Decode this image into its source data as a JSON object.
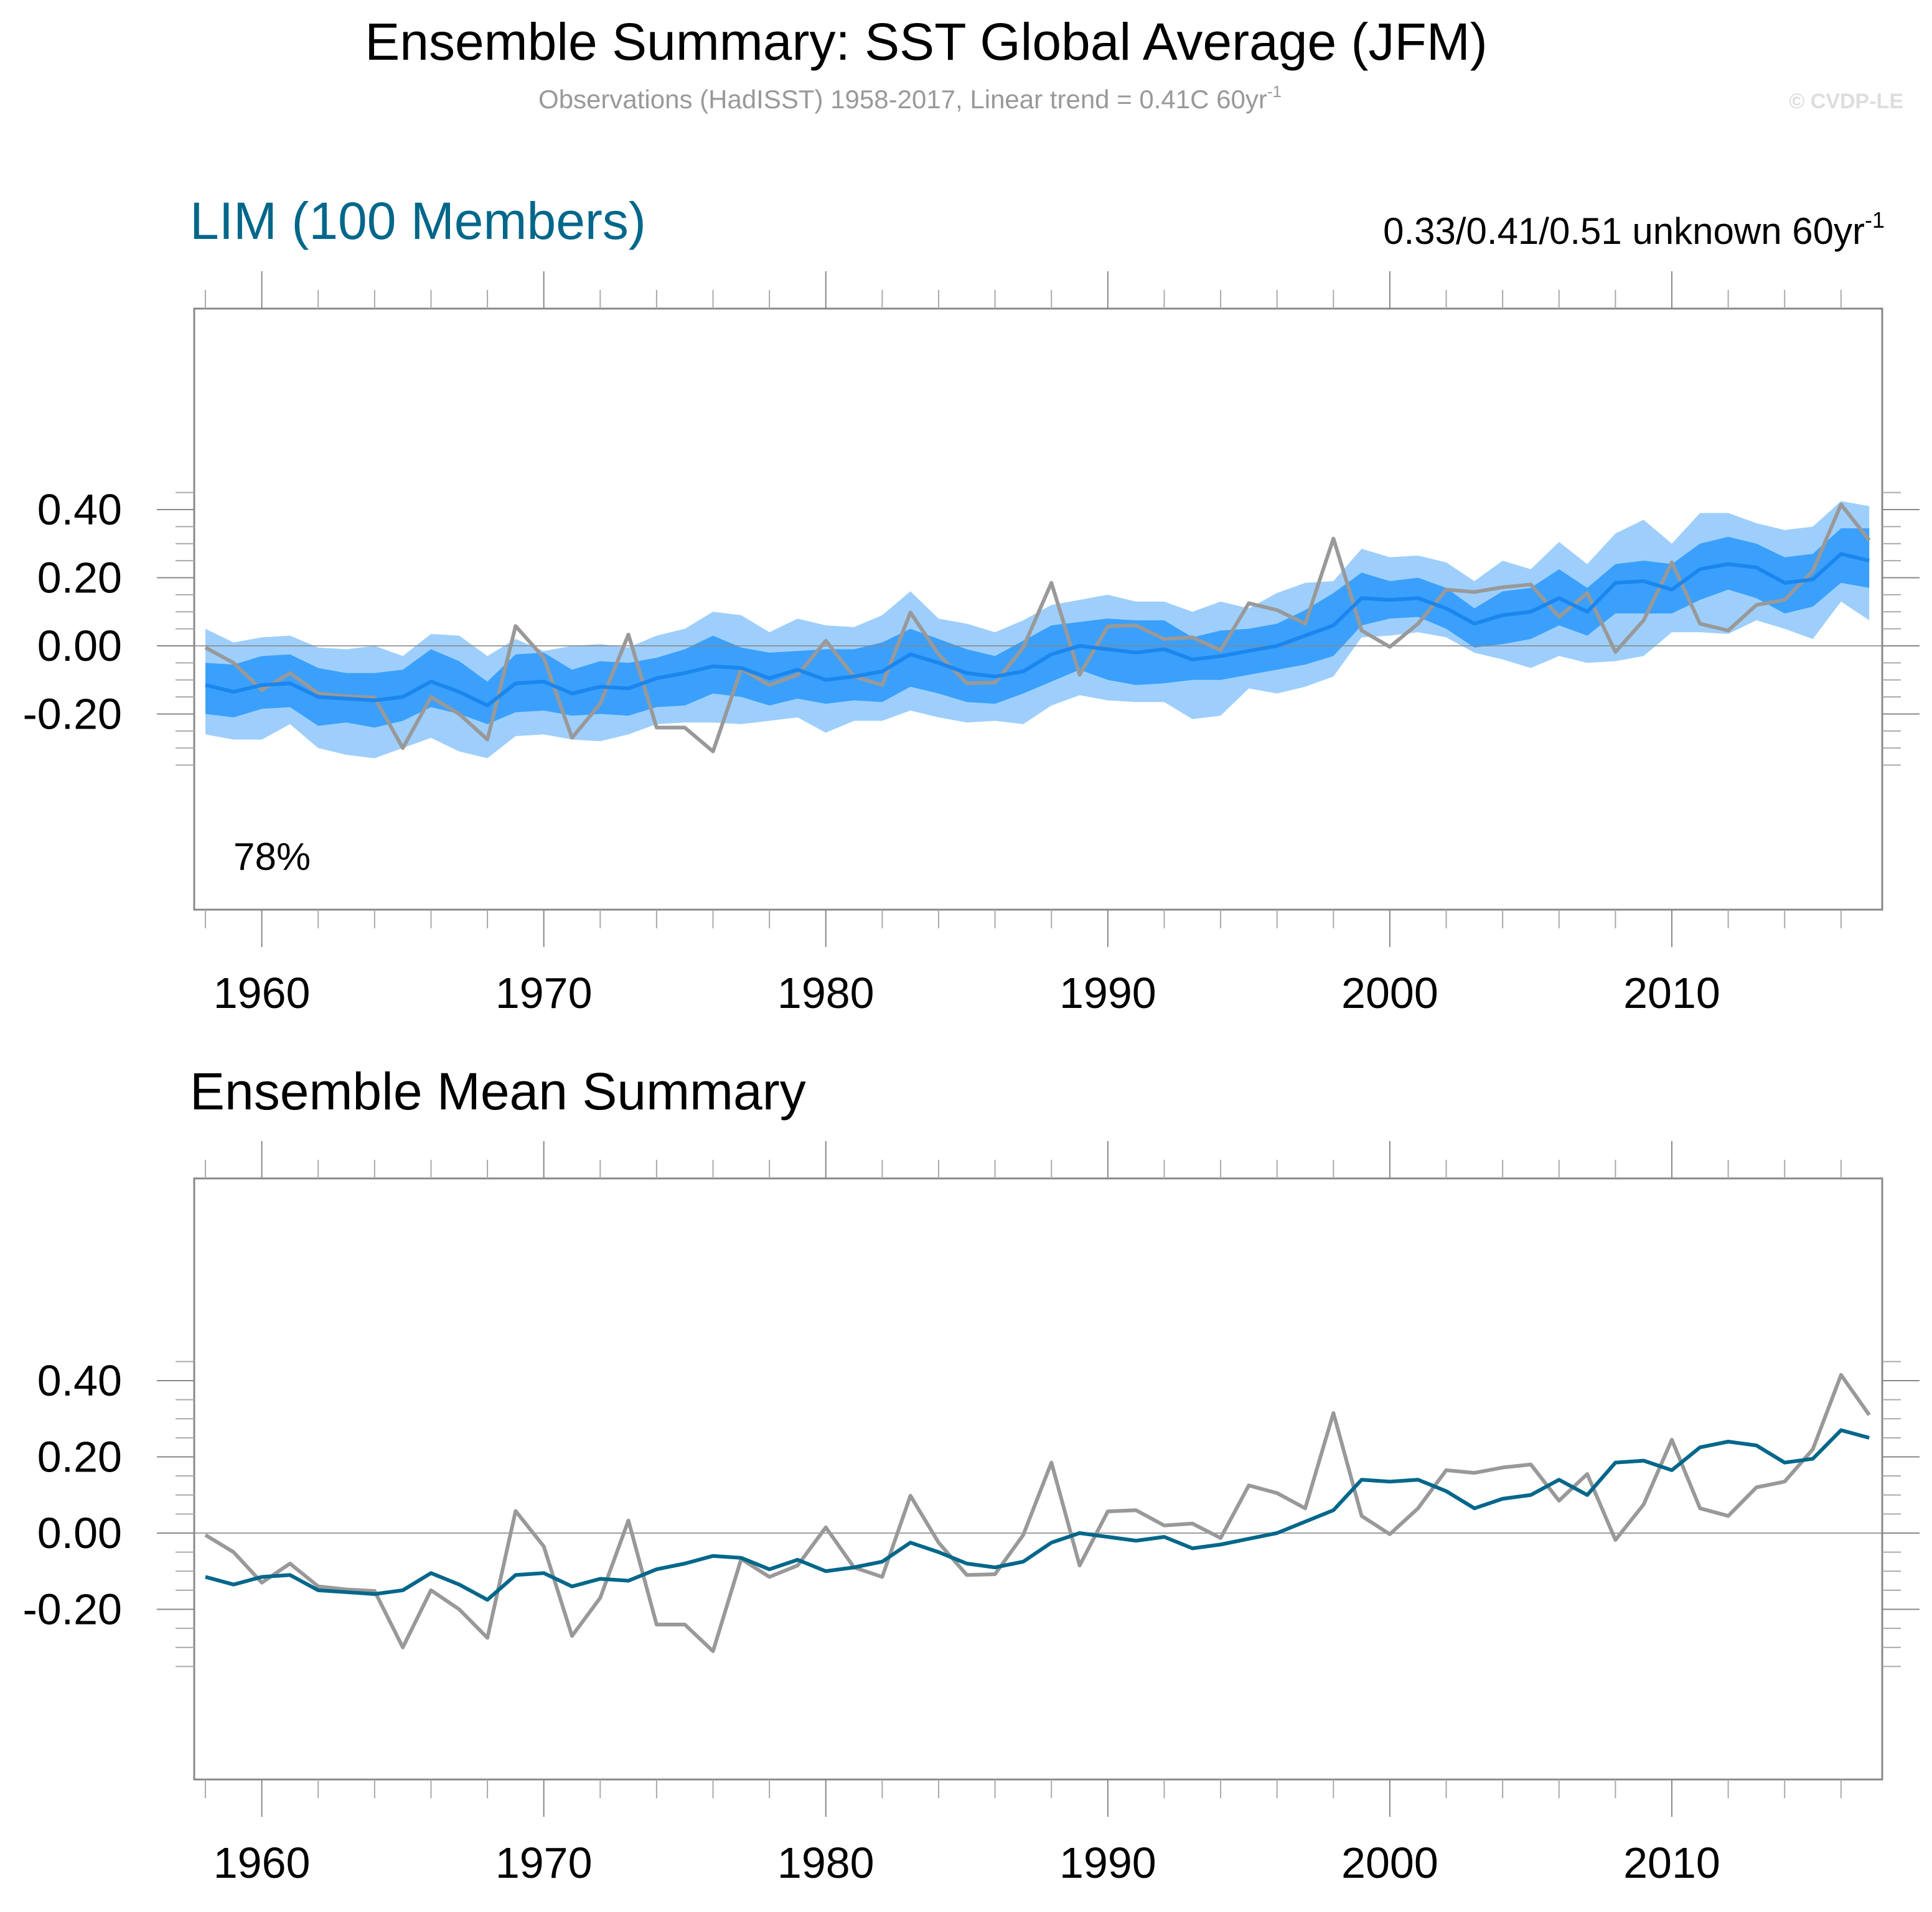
{
  "figure": {
    "title": "Ensemble Summary: SST Global Average (JFM)",
    "subtitle": "Observations (HadISST) 1958-2017, Linear trend = 0.41C 60yr",
    "subtitle_sup": "-1",
    "copyright": "© CVDP-LE"
  },
  "colors": {
    "outer_band": "#9ECFFC",
    "inner_band": "#3AA0FC",
    "ensemble_mean_top": "#1A86EE",
    "ensemble_mean_bottom": "#00678A",
    "observations": "#999999",
    "panel_label": "#00678A"
  },
  "chart_data": [
    {
      "type": "area",
      "panel_title": "LIM (100 Members)",
      "trend_label": "0.33/0.41/0.51 unknown 60yr",
      "trend_label_sup": "-1",
      "annotation": "78%",
      "xlim": [
        1958,
        2017
      ],
      "ylim": [
        -0.4,
        0.42
      ],
      "x_major_ticks": [
        1960,
        1970,
        1980,
        1990,
        2000,
        2010
      ],
      "x_tick_labels": [
        "1960",
        "1970",
        "1980",
        "1990",
        "2000",
        "2010"
      ],
      "y_major_ticks": [
        -0.2,
        0.0,
        0.2,
        0.4
      ],
      "y_tick_labels": [
        "-0.20",
        "0.00",
        "0.20",
        "0.40"
      ],
      "zero_line": true,
      "x": [
        1958,
        1959,
        1960,
        1961,
        1962,
        1963,
        1964,
        1965,
        1966,
        1967,
        1968,
        1969,
        1970,
        1971,
        1972,
        1973,
        1974,
        1975,
        1976,
        1977,
        1978,
        1979,
        1980,
        1981,
        1982,
        1983,
        1984,
        1985,
        1986,
        1987,
        1988,
        1989,
        1990,
        1991,
        1992,
        1993,
        1994,
        1995,
        1996,
        1997,
        1998,
        1999,
        2000,
        2001,
        2002,
        2003,
        2004,
        2005,
        2006,
        2007,
        2008,
        2009,
        2010,
        2011,
        2012,
        2013,
        2014,
        2015,
        2016,
        2017
      ],
      "series": [
        {
          "name": "Ensemble range upper (outer)",
          "role": "outer_upper",
          "values": [
            0.05,
            0.01,
            0.025,
            0.03,
            -0.005,
            -0.01,
            0.0,
            -0.03,
            0.035,
            0.03,
            -0.03,
            0.02,
            -0.015,
            0.0,
            0.005,
            -0.005,
            0.03,
            0.05,
            0.1,
            0.09,
            0.04,
            0.08,
            0.06,
            0.055,
            0.09,
            0.16,
            0.08,
            0.065,
            0.04,
            0.075,
            0.12,
            0.135,
            0.15,
            0.13,
            0.13,
            0.1,
            0.13,
            0.11,
            0.155,
            0.185,
            0.19,
            0.285,
            0.26,
            0.265,
            0.245,
            0.19,
            0.25,
            0.225,
            0.305,
            0.24,
            0.33,
            0.37,
            0.3,
            0.39,
            0.39,
            0.36,
            0.34,
            0.35,
            0.425,
            0.41
          ]
        },
        {
          "name": "Ensemble range lower (outer)",
          "role": "outer_lower",
          "values": [
            -0.26,
            -0.275,
            -0.275,
            -0.23,
            -0.3,
            -0.32,
            -0.33,
            -0.3,
            -0.27,
            -0.31,
            -0.33,
            -0.265,
            -0.26,
            -0.275,
            -0.28,
            -0.26,
            -0.23,
            -0.225,
            -0.225,
            -0.23,
            -0.22,
            -0.21,
            -0.255,
            -0.22,
            -0.22,
            -0.19,
            -0.21,
            -0.225,
            -0.22,
            -0.23,
            -0.175,
            -0.145,
            -0.16,
            -0.165,
            -0.165,
            -0.215,
            -0.205,
            -0.125,
            -0.14,
            -0.12,
            -0.09,
            0.025,
            0.03,
            0.04,
            0.025,
            -0.02,
            -0.04,
            -0.065,
            -0.03,
            -0.05,
            -0.045,
            -0.03,
            0.04,
            0.04,
            0.035,
            0.075,
            0.05,
            0.02,
            0.13,
            0.075
          ]
        },
        {
          "name": "Ensemble range upper (inner)",
          "role": "inner_upper",
          "values": [
            -0.05,
            -0.055,
            -0.03,
            -0.025,
            -0.065,
            -0.08,
            -0.08,
            -0.07,
            -0.01,
            -0.045,
            -0.105,
            -0.025,
            -0.02,
            -0.07,
            -0.045,
            -0.05,
            -0.035,
            -0.01,
            0.03,
            -0.005,
            -0.02,
            -0.015,
            -0.01,
            -0.01,
            0.01,
            0.05,
            0.02,
            -0.01,
            -0.03,
            0.015,
            0.06,
            0.07,
            0.08,
            0.075,
            0.075,
            0.025,
            0.045,
            0.05,
            0.065,
            0.105,
            0.155,
            0.215,
            0.19,
            0.2,
            0.17,
            0.11,
            0.16,
            0.17,
            0.225,
            0.17,
            0.24,
            0.25,
            0.24,
            0.3,
            0.32,
            0.3,
            0.26,
            0.27,
            0.345,
            0.345
          ]
        },
        {
          "name": "Ensemble range lower (inner)",
          "role": "inner_lower",
          "values": [
            -0.2,
            -0.21,
            -0.185,
            -0.18,
            -0.235,
            -0.225,
            -0.24,
            -0.22,
            -0.18,
            -0.2,
            -0.23,
            -0.195,
            -0.19,
            -0.205,
            -0.2,
            -0.205,
            -0.18,
            -0.175,
            -0.14,
            -0.15,
            -0.175,
            -0.155,
            -0.17,
            -0.16,
            -0.165,
            -0.12,
            -0.14,
            -0.165,
            -0.17,
            -0.14,
            -0.105,
            -0.07,
            -0.1,
            -0.115,
            -0.11,
            -0.1,
            -0.1,
            -0.085,
            -0.07,
            -0.055,
            -0.03,
            0.06,
            0.08,
            0.085,
            0.05,
            -0.005,
            0.005,
            0.02,
            0.06,
            0.03,
            0.095,
            0.095,
            0.095,
            0.135,
            0.165,
            0.14,
            0.095,
            0.115,
            0.185,
            0.17
          ]
        },
        {
          "name": "Ensemble mean",
          "role": "mean",
          "values": [
            -0.115,
            -0.135,
            -0.115,
            -0.11,
            -0.15,
            -0.155,
            -0.16,
            -0.15,
            -0.105,
            -0.135,
            -0.175,
            -0.11,
            -0.105,
            -0.14,
            -0.12,
            -0.125,
            -0.095,
            -0.08,
            -0.06,
            -0.065,
            -0.095,
            -0.07,
            -0.1,
            -0.09,
            -0.075,
            -0.025,
            -0.05,
            -0.08,
            -0.09,
            -0.075,
            -0.025,
            0.0,
            -0.01,
            -0.02,
            -0.01,
            -0.04,
            -0.03,
            -0.015,
            0.0,
            0.03,
            0.06,
            0.14,
            0.135,
            0.14,
            0.11,
            0.065,
            0.09,
            0.1,
            0.14,
            0.1,
            0.185,
            0.19,
            0.165,
            0.225,
            0.24,
            0.23,
            0.185,
            0.195,
            0.27,
            0.25
          ]
        },
        {
          "name": "Observations (HadISST)",
          "role": "obs",
          "values": [
            -0.005,
            -0.05,
            -0.13,
            -0.08,
            -0.14,
            -0.148,
            -0.152,
            -0.3,
            -0.15,
            -0.2,
            -0.275,
            0.058,
            -0.035,
            -0.27,
            -0.17,
            0.033,
            -0.24,
            -0.24,
            -0.31,
            -0.068,
            -0.115,
            -0.085,
            0.015,
            -0.09,
            -0.115,
            0.098,
            -0.025,
            -0.11,
            -0.108,
            -0.005,
            0.185,
            -0.085,
            0.057,
            0.06,
            0.02,
            0.025,
            -0.013,
            0.125,
            0.105,
            0.065,
            0.315,
            0.045,
            -0.003,
            0.065,
            0.165,
            0.158,
            0.172,
            0.18,
            0.085,
            0.155,
            -0.018,
            0.075,
            0.245,
            0.065,
            0.045,
            0.12,
            0.135,
            0.22,
            0.415,
            0.31
          ]
        }
      ]
    },
    {
      "type": "line",
      "panel_title": "Ensemble Mean Summary",
      "xlim": [
        1958,
        2017
      ],
      "ylim": [
        -0.34,
        0.45
      ],
      "x_major_ticks": [
        1960,
        1970,
        1980,
        1990,
        2000,
        2010
      ],
      "x_tick_labels": [
        "1960",
        "1970",
        "1980",
        "1990",
        "2000",
        "2010"
      ],
      "y_major_ticks": [
        -0.2,
        0.0,
        0.2,
        0.4
      ],
      "y_tick_labels": [
        "-0.20",
        "0.00",
        "0.20",
        "0.40"
      ],
      "zero_line": true,
      "series_ref": [
        "Ensemble mean",
        "Observations (HadISST)"
      ]
    }
  ]
}
